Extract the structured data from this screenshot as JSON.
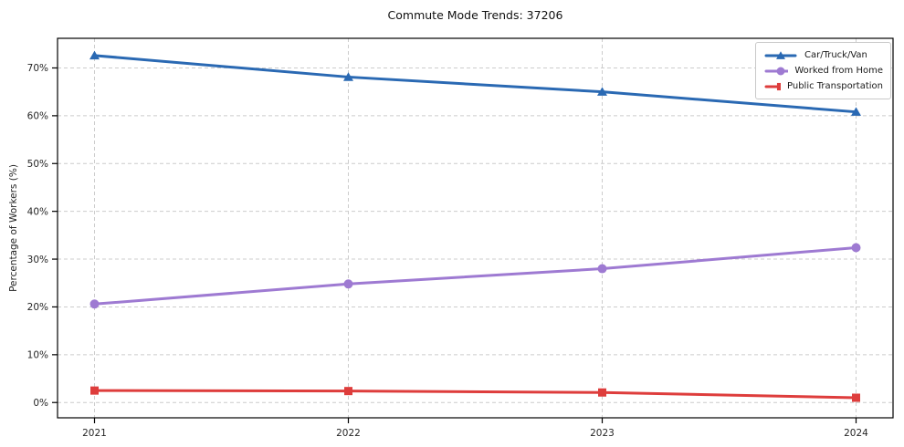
{
  "title": "Commute Mode Trends: 37206",
  "chart_data": {
    "type": "line",
    "title": "Commute Mode Trends: 37206",
    "xlabel": "",
    "ylabel": "Percentage of Workers (%)",
    "categories": [
      "2021",
      "2022",
      "2023",
      "2024"
    ],
    "series": [
      {
        "name": "Car/Truck/Van",
        "marker": "triangle",
        "color": "#2a69b3",
        "values": [
          72.6,
          68.1,
          65.0,
          60.8
        ]
      },
      {
        "name": "Worked from Home",
        "marker": "circle",
        "color": "#9e7ad2",
        "values": [
          20.6,
          24.8,
          28.0,
          32.4
        ]
      },
      {
        "name": "Public Transportation",
        "marker": "square",
        "color": "#de3d3c",
        "values": [
          2.5,
          2.4,
          2.1,
          1.0
        ]
      }
    ],
    "yticks": [
      0,
      10,
      20,
      30,
      40,
      50,
      60,
      70
    ],
    "ytick_labels": [
      "0%",
      "10%",
      "20%",
      "30%",
      "40%",
      "50%",
      "60%",
      "70%"
    ],
    "ylim": [
      -3.2,
      76.2
    ],
    "grid": true,
    "grid_style": "dashed",
    "legend_position": "top-right",
    "colors": {
      "grid": "#cccccc",
      "axis": "#000000",
      "tick_text": "#262626",
      "legend_border": "#c9c9c9"
    }
  }
}
